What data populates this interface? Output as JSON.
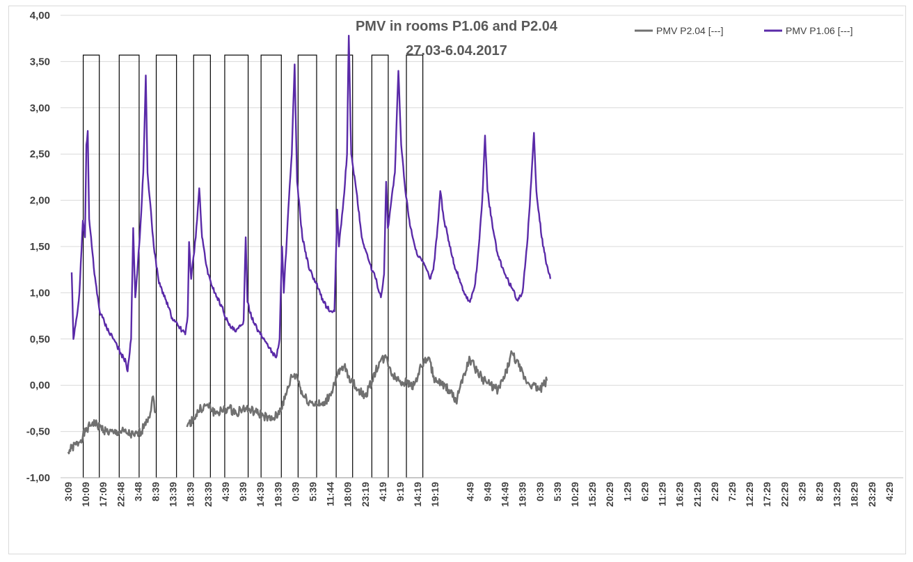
{
  "chart_data": {
    "type": "line",
    "title": [
      "PMV in rooms P1.06 and P2.04",
      "27.03-6.04.2017"
    ],
    "xlabel": "",
    "ylabel": "",
    "ylim": [
      -1.0,
      4.0
    ],
    "yticks": [
      "-1,00",
      "-0,50",
      "0,00",
      "0,50",
      "1,00",
      "1,50",
      "2,00",
      "2,50",
      "3,00",
      "3,50",
      "4,00"
    ],
    "grid": true,
    "legend_position": "top-right",
    "x_index_range": [
      0,
      239
    ],
    "x_tick_labels": [
      {
        "i": 0,
        "label": "3:09"
      },
      {
        "i": 5,
        "label": "10:09"
      },
      {
        "i": 10,
        "label": "17:09"
      },
      {
        "i": 15,
        "label": "22:48"
      },
      {
        "i": 20,
        "label": "3:48"
      },
      {
        "i": 25,
        "label": "8:39"
      },
      {
        "i": 30,
        "label": "13:39"
      },
      {
        "i": 35,
        "label": "18:39"
      },
      {
        "i": 40,
        "label": "23:39"
      },
      {
        "i": 45,
        "label": "4:39"
      },
      {
        "i": 50,
        "label": "9:39"
      },
      {
        "i": 55,
        "label": "14:39"
      },
      {
        "i": 60,
        "label": "19:39"
      },
      {
        "i": 65,
        "label": "0:39"
      },
      {
        "i": 70,
        "label": "5:39"
      },
      {
        "i": 75,
        "label": "11:44"
      },
      {
        "i": 80,
        "label": "18:09"
      },
      {
        "i": 85,
        "label": "23:19"
      },
      {
        "i": 90,
        "label": "4:19"
      },
      {
        "i": 95,
        "label": "9:19"
      },
      {
        "i": 100,
        "label": "14:19"
      },
      {
        "i": 105,
        "label": "19:19"
      },
      {
        "i": 115,
        "label": "4:49"
      },
      {
        "i": 120,
        "label": "9:49"
      },
      {
        "i": 125,
        "label": "14:49"
      },
      {
        "i": 130,
        "label": "19:39"
      },
      {
        "i": 135,
        "label": "0:39"
      },
      {
        "i": 140,
        "label": "5:39"
      },
      {
        "i": 145,
        "label": "10:29"
      },
      {
        "i": 150,
        "label": "15:29"
      },
      {
        "i": 155,
        "label": "20:29"
      },
      {
        "i": 160,
        "label": "1:29"
      },
      {
        "i": 165,
        "label": "6:29"
      },
      {
        "i": 170,
        "label": "11:29"
      },
      {
        "i": 175,
        "label": "16:29"
      },
      {
        "i": 180,
        "label": "21:29"
      },
      {
        "i": 185,
        "label": "2:29"
      },
      {
        "i": 190,
        "label": "7:29"
      },
      {
        "i": 195,
        "label": "12:29"
      },
      {
        "i": 200,
        "label": "17:29"
      },
      {
        "i": 205,
        "label": "22:29"
      },
      {
        "i": 210,
        "label": "3:29"
      },
      {
        "i": 215,
        "label": "8:29"
      },
      {
        "i": 220,
        "label": "13:29"
      },
      {
        "i": 225,
        "label": "18:29"
      },
      {
        "i": 230,
        "label": "23:29"
      },
      {
        "i": 235,
        "label": "4:29"
      }
    ],
    "occupancy_boxes": [
      {
        "start": 4.3,
        "end": 8.9
      },
      {
        "start": 14.6,
        "end": 20.3
      },
      {
        "start": 25.2,
        "end": 31.0
      },
      {
        "start": 35.9,
        "end": 40.7
      },
      {
        "start": 44.8,
        "end": 51.5
      },
      {
        "start": 55.2,
        "end": 61.0
      },
      {
        "start": 65.8,
        "end": 71.1
      },
      {
        "start": 76.7,
        "end": 81.4
      },
      {
        "start": 86.9,
        "end": 91.6
      },
      {
        "start": 96.8,
        "end": 101.5
      }
    ],
    "occupancy_box_range": [
      -1.0,
      3.57
    ],
    "series": [
      {
        "name": "PMV P2.04 [---]",
        "color": "#707070",
        "noise": 0.05,
        "points": [
          [
            0,
            -0.72
          ],
          [
            1,
            -0.68
          ],
          [
            3,
            -0.62
          ],
          [
            5,
            -0.5
          ],
          [
            7,
            -0.4
          ],
          [
            9,
            -0.45
          ],
          [
            11,
            -0.5
          ],
          [
            13,
            -0.52
          ],
          [
            15,
            -0.5
          ],
          [
            17,
            -0.52
          ],
          [
            19,
            -0.55
          ],
          [
            21,
            -0.5
          ],
          [
            22,
            -0.4
          ],
          [
            23.5,
            -0.3
          ],
          [
            24.3,
            -0.12
          ],
          [
            25,
            -0.3
          ],
          [
            null,
            null
          ],
          [
            34,
            -0.45
          ],
          [
            36,
            -0.35
          ],
          [
            38,
            -0.25
          ],
          [
            40,
            -0.22
          ],
          [
            42,
            -0.3
          ],
          [
            44,
            -0.28
          ],
          [
            46,
            -0.25
          ],
          [
            48,
            -0.3
          ],
          [
            50,
            -0.25
          ],
          [
            52,
            -0.27
          ],
          [
            54,
            -0.3
          ],
          [
            56,
            -0.33
          ],
          [
            58,
            -0.38
          ],
          [
            60,
            -0.32
          ],
          [
            62,
            -0.15
          ],
          [
            64,
            0.1
          ],
          [
            65.5,
            0.1
          ],
          [
            67,
            -0.1
          ],
          [
            69,
            -0.18
          ],
          [
            71,
            -0.2
          ],
          [
            73,
            -0.22
          ],
          [
            75,
            -0.1
          ],
          [
            77,
            0.1
          ],
          [
            79,
            0.2
          ],
          [
            81,
            0.05
          ],
          [
            83,
            -0.05
          ],
          [
            85,
            -0.12
          ],
          [
            87,
            0.05
          ],
          [
            89,
            0.25
          ],
          [
            91,
            0.3
          ],
          [
            93,
            0.1
          ],
          [
            95,
            0.05
          ],
          [
            97,
            0.02
          ],
          [
            99,
            0.0
          ],
          [
            101,
            0.2
          ],
          [
            103,
            0.3
          ],
          [
            105,
            0.05
          ],
          [
            107,
            0.0
          ],
          [
            109,
            -0.05
          ],
          [
            111,
            -0.18
          ],
          [
            113,
            0.1
          ],
          [
            115,
            0.28
          ],
          [
            117,
            0.15
          ],
          [
            119,
            0.05
          ],
          [
            121,
            0.0
          ],
          [
            123,
            -0.05
          ],
          [
            125,
            0.1
          ],
          [
            127,
            0.35
          ],
          [
            129,
            0.2
          ],
          [
            131,
            0.05
          ],
          [
            133,
            0.0
          ],
          [
            135,
            -0.05
          ],
          [
            137,
            0.05
          ]
        ]
      },
      {
        "name": "PMV P1.06 [---]",
        "color": "#5a2aa8",
        "noise": 0.025,
        "points": [
          [
            1.0,
            1.22
          ],
          [
            1.5,
            0.5
          ],
          [
            2.5,
            0.75
          ],
          [
            3.2,
            1.0
          ],
          [
            4.2,
            1.78
          ],
          [
            4.8,
            1.6
          ],
          [
            5.2,
            2.6
          ],
          [
            5.6,
            2.75
          ],
          [
            6.0,
            1.8
          ],
          [
            7.5,
            1.2
          ],
          [
            9.0,
            0.8
          ],
          [
            11,
            0.62
          ],
          [
            13,
            0.5
          ],
          [
            15,
            0.35
          ],
          [
            16.5,
            0.25
          ],
          [
            17.0,
            0.15
          ],
          [
            18.0,
            0.5
          ],
          [
            18.6,
            1.7
          ],
          [
            19.2,
            0.95
          ],
          [
            20.5,
            1.6
          ],
          [
            21.5,
            2.3
          ],
          [
            22.2,
            3.35
          ],
          [
            22.7,
            2.3
          ],
          [
            24.5,
            1.5
          ],
          [
            26,
            1.1
          ],
          [
            28,
            0.92
          ],
          [
            30,
            0.7
          ],
          [
            32,
            0.62
          ],
          [
            33.5,
            0.55
          ],
          [
            34.2,
            0.75
          ],
          [
            34.6,
            1.55
          ],
          [
            35.2,
            1.15
          ],
          [
            36.5,
            1.6
          ],
          [
            37.5,
            2.13
          ],
          [
            38.3,
            1.6
          ],
          [
            40,
            1.2
          ],
          [
            42,
            1.0
          ],
          [
            44,
            0.85
          ],
          [
            46,
            0.65
          ],
          [
            48,
            0.58
          ],
          [
            49.5,
            0.65
          ],
          [
            50.2,
            0.7
          ],
          [
            50.8,
            1.6
          ],
          [
            51.3,
            0.9
          ],
          [
            53,
            0.68
          ],
          [
            55,
            0.55
          ],
          [
            57,
            0.45
          ],
          [
            58.5,
            0.35
          ],
          [
            59.5,
            0.3
          ],
          [
            60.5,
            0.5
          ],
          [
            61.2,
            1.5
          ],
          [
            61.7,
            1.0
          ],
          [
            63.0,
            1.9
          ],
          [
            64.0,
            2.5
          ],
          [
            64.8,
            3.47
          ],
          [
            65.5,
            2.2
          ],
          [
            67,
            1.6
          ],
          [
            69,
            1.25
          ],
          [
            71,
            1.1
          ],
          [
            73,
            0.9
          ],
          [
            75,
            0.8
          ],
          [
            76.2,
            0.8
          ],
          [
            77.0,
            1.9
          ],
          [
            77.5,
            1.5
          ],
          [
            78.8,
            2.0
          ],
          [
            79.8,
            2.5
          ],
          [
            80.3,
            3.78
          ],
          [
            81.0,
            2.5
          ],
          [
            82.5,
            2.1
          ],
          [
            84,
            1.6
          ],
          [
            86,
            1.35
          ],
          [
            88,
            1.15
          ],
          [
            89.5,
            0.95
          ],
          [
            90.4,
            1.2
          ],
          [
            91.0,
            2.2
          ],
          [
            91.5,
            1.7
          ],
          [
            92.5,
            2.0
          ],
          [
            93.5,
            2.3
          ],
          [
            94.5,
            3.4
          ],
          [
            95.3,
            2.6
          ],
          [
            96.5,
            2.1
          ],
          [
            98,
            1.7
          ],
          [
            100,
            1.4
          ],
          [
            102,
            1.3
          ],
          [
            103.5,
            1.15
          ],
          [
            104.5,
            1.25
          ],
          [
            105.5,
            1.6
          ],
          [
            106.5,
            2.1
          ],
          [
            107.5,
            1.8
          ],
          [
            109,
            1.55
          ],
          [
            110.5,
            1.3
          ],
          [
            112,
            1.15
          ],
          [
            113.5,
            0.98
          ],
          [
            115,
            0.9
          ],
          [
            116.5,
            1.1
          ],
          [
            117.5,
            1.5
          ],
          [
            118.5,
            2.0
          ],
          [
            119.3,
            2.7
          ],
          [
            120.0,
            2.1
          ],
          [
            121.5,
            1.7
          ],
          [
            123,
            1.4
          ],
          [
            125,
            1.2
          ],
          [
            127,
            1.05
          ],
          [
            128.5,
            0.92
          ],
          [
            130,
            1.0
          ],
          [
            131.3,
            1.5
          ],
          [
            132.5,
            2.2
          ],
          [
            133.3,
            2.73
          ],
          [
            134.0,
            2.1
          ],
          [
            135.5,
            1.6
          ],
          [
            137,
            1.3
          ],
          [
            138,
            1.15
          ]
        ]
      }
    ]
  }
}
